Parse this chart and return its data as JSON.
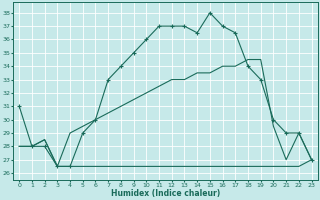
{
  "title": "",
  "xlabel": "Humidex (Indice chaleur)",
  "bg_color": "#c6e9e9",
  "line_color": "#1a6b5a",
  "grid_color": "#ffffff",
  "xlim": [
    -0.5,
    23.5
  ],
  "ylim": [
    25.5,
    38.8
  ],
  "yticks": [
    26,
    27,
    28,
    29,
    30,
    31,
    32,
    33,
    34,
    35,
    36,
    37,
    38
  ],
  "xticks": [
    0,
    1,
    2,
    3,
    4,
    5,
    6,
    7,
    8,
    9,
    10,
    11,
    12,
    13,
    14,
    15,
    16,
    17,
    18,
    19,
    20,
    21,
    22,
    23
  ],
  "line1_x": [
    0,
    1,
    2,
    3,
    4,
    5,
    6,
    7,
    8,
    9,
    10,
    11,
    12,
    13,
    14,
    15,
    16,
    17,
    18,
    19,
    20,
    21,
    22,
    23
  ],
  "line1_y": [
    31,
    28,
    28,
    26.5,
    26.5,
    29,
    30,
    33,
    34,
    35,
    36,
    37,
    37,
    37,
    36.5,
    38,
    37,
    36.5,
    34,
    33,
    30,
    29,
    29,
    27
  ],
  "line2_x": [
    0,
    1,
    2,
    3,
    4,
    5,
    6,
    7,
    8,
    9,
    10,
    11,
    12,
    13,
    14,
    15,
    16,
    17,
    18,
    19,
    20,
    21,
    22,
    23
  ],
  "line2_y": [
    28,
    28,
    28.5,
    26.5,
    29,
    29.5,
    30,
    30.5,
    31,
    31.5,
    32,
    32.5,
    33,
    33,
    33.5,
    33.5,
    34,
    34,
    34.5,
    34.5,
    29.5,
    27,
    29,
    27
  ],
  "line3_x": [
    0,
    1,
    2,
    3,
    4,
    10,
    11,
    19,
    20,
    21,
    22,
    23
  ],
  "line3_y": [
    28,
    28,
    28.5,
    26.5,
    26.5,
    26.5,
    26.5,
    26.5,
    26.5,
    26.5,
    26.5,
    27
  ]
}
